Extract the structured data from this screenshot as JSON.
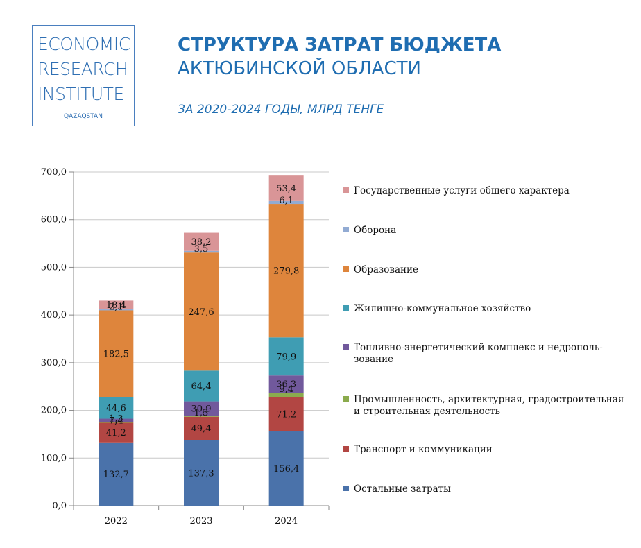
{
  "logo": {
    "line1": "ECONOMIC",
    "line2": "RESEARCH",
    "line3": "INSTITUTE",
    "sub": "QAZAQSTAN"
  },
  "header": {
    "title_line1": "СТРУКТУРА ЗАТРАТ БЮДЖЕТА",
    "title_line2": "АКТЮБИНСКОЙ ОБЛАСТИ",
    "subtitle": "ЗА 2020-2024 ГОДЫ, МЛРД ТЕНГЕ"
  },
  "chart_data": {
    "type": "bar",
    "stacked": true,
    "categories": [
      "2022",
      "2023",
      "2024"
    ],
    "ylim": [
      0,
      700
    ],
    "yticks": [
      "0,0",
      "100,0",
      "200,0",
      "300,0",
      "400,0",
      "500,0",
      "600,0",
      "700,0"
    ],
    "grid": true,
    "legend_position": "right",
    "series": [
      {
        "name": "Остальные затраты",
        "color": "#4a72aa",
        "values": [
          132.7,
          137.3,
          156.4
        ],
        "labels": [
          "132,7",
          "137,3",
          "156,4"
        ]
      },
      {
        "name": "Транспорт и коммуникации",
        "color": "#b24643",
        "values": [
          41.2,
          49.4,
          71.2
        ],
        "labels": [
          "41,2",
          "49,4",
          "71,2"
        ]
      },
      {
        "name": "Промышленность, архитектурная, градостроительная и строительная деятельность",
        "legend_lines": [
          "Промышленность, архитектурная, градостроительная",
          "и строительная деятельность"
        ],
        "color": "#8bab4d",
        "values": [
          1.3,
          1.3,
          9.4
        ],
        "labels": [
          "1,3",
          "1,3",
          "9,4"
        ]
      },
      {
        "name": "Топливно-энергетический комплекс и недрополь-зование",
        "legend_lines": [
          "Топливно-энергетический комплекс и недрополь-",
          "зование"
        ],
        "color": "#71599c",
        "values": [
          7.4,
          30.9,
          36.3
        ],
        "labels": [
          "7,4",
          "30,9",
          "36,3"
        ]
      },
      {
        "name": "Жилищно-коммунальное хозяйство",
        "color": "#3f9db3",
        "values": [
          44.6,
          64.4,
          79.9
        ],
        "labels": [
          "44,6",
          "64,4",
          "79,9"
        ]
      },
      {
        "name": "Образование",
        "color": "#de853c",
        "values": [
          182.5,
          247.6,
          279.8
        ],
        "labels": [
          "182,5",
          "247,6",
          "279,8"
        ]
      },
      {
        "name": "Оборона",
        "color": "#92abd3",
        "values": [
          2.1,
          3.5,
          6.1
        ],
        "labels": [
          "2,1",
          "3,5",
          "6,1"
        ]
      },
      {
        "name": "Государственные услуги общего характера",
        "color": "#d99597",
        "values": [
          18.4,
          38.2,
          53.4
        ],
        "labels": [
          "18,4",
          "38,2",
          "53,4"
        ]
      }
    ]
  }
}
